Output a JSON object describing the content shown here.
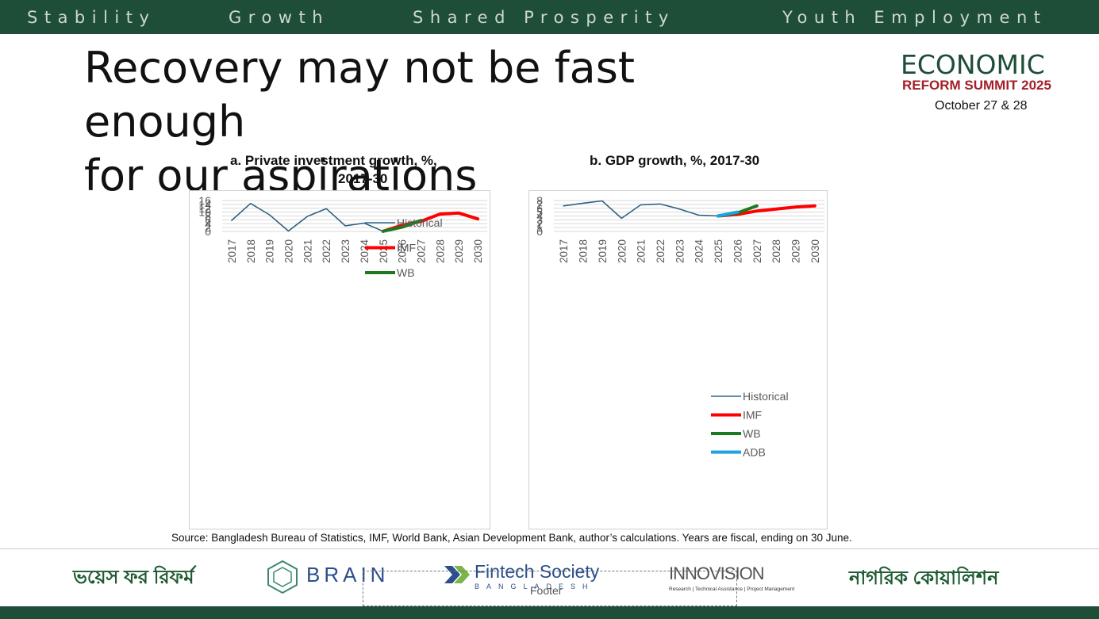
{
  "header": {
    "pillars": [
      "Stability",
      "Growth",
      "Shared Prosperity",
      "Youth Employment"
    ]
  },
  "slide": {
    "title_line1": "Recovery may not be fast enough",
    "title_line2": "for our aspirations",
    "source": "Source: Bangladesh Bureau of Statistics, IMF, World Bank, Asian Development Bank, author’s calculations. Years are fiscal, ending on 30 June."
  },
  "logo": {
    "line1": "ECONOMIC",
    "line2": "REFORM SUMMIT 2025",
    "date": "October 27 & 28"
  },
  "colors": {
    "brand_green": "#1e4d38",
    "brand_red": "#a3202a",
    "historical": "#2e6384",
    "imf": "#ff0000",
    "wb": "#1e7a1e",
    "adb": "#1aa3dc"
  },
  "chart_data": [
    {
      "type": "line",
      "title_line1": "a.   Private investment growth, %,",
      "title_line2": "2017-30",
      "categories": [
        "2017",
        "2018",
        "2019",
        "2020",
        "2021",
        "2022",
        "2023",
        "2024",
        "2025",
        "2026",
        "2027",
        "2028",
        "2029",
        "2030"
      ],
      "ylim": [
        0,
        16
      ],
      "yticks": [
        0,
        2,
        4,
        6,
        8,
        10,
        12,
        14,
        16
      ],
      "grid": true,
      "legend_position": "top-center",
      "series": [
        {
          "name": "Historical",
          "color": "#2e6384",
          "width": 1.6,
          "values": [
            5.7,
            14.5,
            8.6,
            0.2,
            7.8,
            11.8,
            2.9,
            4.3,
            0.1,
            null,
            null,
            null,
            null,
            null
          ]
        },
        {
          "name": "IMF",
          "color": "#ff0000",
          "width": 4,
          "values": [
            null,
            null,
            null,
            null,
            null,
            null,
            null,
            null,
            0.1,
            3.2,
            5.2,
            9.0,
            9.5,
            6.5
          ]
        },
        {
          "name": "WB",
          "color": "#1e7a1e",
          "width": 4,
          "values": [
            null,
            null,
            null,
            null,
            null,
            null,
            null,
            null,
            0.1,
            2.2,
            5.7,
            null,
            null,
            null
          ]
        }
      ]
    },
    {
      "type": "line",
      "title_line1": "b.   GDP growth, %, 2017-30",
      "title_line2": "",
      "categories": [
        "2017",
        "2018",
        "2019",
        "2020",
        "2021",
        "2022",
        "2023",
        "2024",
        "2025",
        "2026",
        "2027",
        "2028",
        "2029",
        "2030"
      ],
      "ylim": [
        0,
        8
      ],
      "yticks": [
        0,
        1,
        2,
        3,
        4,
        5,
        6,
        7,
        8
      ],
      "grid": true,
      "legend_position": "bottom-center",
      "series": [
        {
          "name": "Historical",
          "color": "#2e6384",
          "width": 1.6,
          "values": [
            6.6,
            7.3,
            7.9,
            3.4,
            6.9,
            7.1,
            5.8,
            4.2,
            4.0,
            null,
            null,
            null,
            null,
            null
          ]
        },
        {
          "name": "IMF",
          "color": "#ff0000",
          "width": 4,
          "values": [
            null,
            null,
            null,
            null,
            null,
            null,
            null,
            null,
            4.0,
            4.4,
            5.3,
            5.8,
            6.3,
            6.6
          ]
        },
        {
          "name": "WB",
          "color": "#1e7a1e",
          "width": 4,
          "values": [
            null,
            null,
            null,
            null,
            null,
            null,
            null,
            null,
            4.0,
            4.8,
            6.6,
            null,
            null,
            null
          ]
        },
        {
          "name": "ADB",
          "color": "#1aa3dc",
          "width": 4,
          "values": [
            null,
            null,
            null,
            null,
            null,
            null,
            null,
            null,
            4.0,
            5.0,
            null,
            null,
            null,
            null
          ]
        }
      ]
    }
  ],
  "footer": {
    "placeholder": "Footer",
    "logos": [
      {
        "name": "voice-for-reform",
        "text": "ভয়েস ফর রিফর্ম",
        "color": "#1e5a32"
      },
      {
        "name": "brain",
        "text": "BRAIN",
        "color": "#2a4f8a"
      },
      {
        "name": "fintech-society",
        "text": "Fintech Society",
        "sub": "BANGLADESH",
        "color": "#2a4f8a"
      },
      {
        "name": "innovision",
        "text": "INNOVISION",
        "sub": "Research | Technical Assistance | Project Management",
        "color": "#555555"
      },
      {
        "name": "nagorik-coalition",
        "text": "নাগরিক কোয়ালিশন",
        "color": "#1e5a32"
      }
    ]
  }
}
